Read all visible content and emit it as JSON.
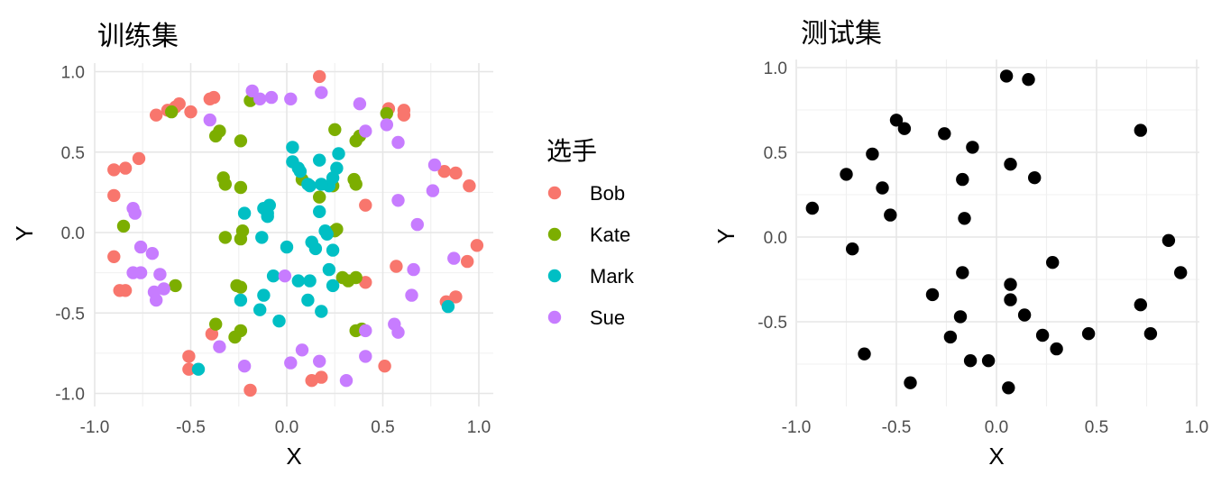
{
  "chart_data": [
    {
      "type": "scatter",
      "title": "训练集",
      "xlabel": "X",
      "ylabel": "Y",
      "xlim": [
        -1.0,
        1.0
      ],
      "ylim": [
        -1.0,
        1.0
      ],
      "x_ticks": [
        "-1.0",
        "-0.5",
        "0.0",
        "0.5",
        "1.0"
      ],
      "y_ticks": [
        "-1.0",
        "-0.5",
        "0.0",
        "0.5",
        "1.0"
      ],
      "grid": true,
      "legend": {
        "title": "选手",
        "placement": "right",
        "entries": [
          "Bob",
          "Kate",
          "Mark",
          "Sue"
        ]
      },
      "series": [
        {
          "name": "Bob",
          "color": "#F8766D",
          "points": [
            [
              0.17,
              0.97
            ],
            [
              -0.4,
              0.83
            ],
            [
              -0.38,
              0.84
            ],
            [
              -0.56,
              0.8
            ],
            [
              -0.58,
              0.78
            ],
            [
              -0.62,
              0.76
            ],
            [
              -0.5,
              0.75
            ],
            [
              -0.68,
              0.73
            ],
            [
              0.53,
              0.77
            ],
            [
              0.61,
              0.76
            ],
            [
              0.61,
              0.73
            ],
            [
              -0.77,
              0.46
            ],
            [
              -0.9,
              0.39
            ],
            [
              -0.84,
              0.4
            ],
            [
              0.82,
              0.38
            ],
            [
              0.88,
              0.37
            ],
            [
              0.95,
              0.29
            ],
            [
              -0.9,
              0.23
            ],
            [
              0.41,
              0.17
            ],
            [
              -0.9,
              -0.15
            ],
            [
              0.99,
              -0.08
            ],
            [
              0.94,
              -0.18
            ],
            [
              0.57,
              -0.21
            ],
            [
              -0.87,
              -0.36
            ],
            [
              -0.84,
              -0.36
            ],
            [
              0.41,
              -0.31
            ],
            [
              0.83,
              -0.43
            ],
            [
              0.88,
              -0.4
            ],
            [
              -0.39,
              -0.63
            ],
            [
              -0.51,
              -0.77
            ],
            [
              -0.51,
              -0.85
            ],
            [
              0.51,
              -0.83
            ],
            [
              0.13,
              -0.92
            ],
            [
              0.18,
              -0.9
            ],
            [
              -0.19,
              -0.98
            ]
          ]
        },
        {
          "name": "Kate",
          "color": "#7CAE00",
          "points": [
            [
              -0.19,
              0.82
            ],
            [
              -0.6,
              0.75
            ],
            [
              0.52,
              0.74
            ],
            [
              0.25,
              0.64
            ],
            [
              -0.35,
              0.63
            ],
            [
              -0.37,
              0.6
            ],
            [
              0.38,
              0.6
            ],
            [
              0.36,
              0.57
            ],
            [
              -0.24,
              0.57
            ],
            [
              -0.33,
              0.34
            ],
            [
              -0.32,
              0.3
            ],
            [
              0.08,
              0.33
            ],
            [
              0.35,
              0.33
            ],
            [
              0.36,
              0.3
            ],
            [
              0.24,
              0.29
            ],
            [
              -0.24,
              0.28
            ],
            [
              0.17,
              0.22
            ],
            [
              -0.85,
              0.04
            ],
            [
              -0.23,
              0.01
            ],
            [
              0.26,
              0.02
            ],
            [
              0.25,
              0.01
            ],
            [
              -0.32,
              -0.03
            ],
            [
              -0.24,
              -0.04
            ],
            [
              -0.58,
              -0.33
            ],
            [
              -0.26,
              -0.33
            ],
            [
              -0.24,
              -0.34
            ],
            [
              0.29,
              -0.28
            ],
            [
              0.32,
              -0.3
            ],
            [
              0.36,
              -0.28
            ],
            [
              -0.37,
              -0.57
            ],
            [
              -0.24,
              -0.61
            ],
            [
              -0.27,
              -0.65
            ],
            [
              0.36,
              -0.61
            ],
            [
              0.39,
              -0.6
            ]
          ]
        },
        {
          "name": "Mark",
          "color": "#00BFC4",
          "points": [
            [
              0.03,
              0.53
            ],
            [
              0.27,
              0.49
            ],
            [
              0.17,
              0.45
            ],
            [
              0.03,
              0.44
            ],
            [
              0.06,
              0.4
            ],
            [
              0.26,
              0.4
            ],
            [
              0.07,
              0.38
            ],
            [
              0.11,
              0.3
            ],
            [
              0.12,
              0.29
            ],
            [
              0.24,
              0.34
            ],
            [
              0.22,
              0.29
            ],
            [
              0.18,
              0.3
            ],
            [
              -0.09,
              0.17
            ],
            [
              -0.12,
              0.15
            ],
            [
              -0.1,
              0.12
            ],
            [
              0.17,
              0.13
            ],
            [
              -0.22,
              0.12
            ],
            [
              -0.1,
              0.1
            ],
            [
              0.2,
              0.01
            ],
            [
              0.21,
              -0.01
            ],
            [
              -0.13,
              -0.03
            ],
            [
              0.13,
              -0.06
            ],
            [
              0.15,
              -0.1
            ],
            [
              0.24,
              -0.11
            ],
            [
              0.0,
              -0.09
            ],
            [
              -0.07,
              -0.27
            ],
            [
              0.06,
              -0.3
            ],
            [
              0.12,
              -0.3
            ],
            [
              0.22,
              -0.23
            ],
            [
              0.24,
              -0.33
            ],
            [
              -0.12,
              -0.39
            ],
            [
              0.11,
              -0.42
            ],
            [
              -0.24,
              -0.42
            ],
            [
              0.18,
              -0.49
            ],
            [
              -0.14,
              -0.48
            ],
            [
              -0.04,
              -0.55
            ],
            [
              0.84,
              -0.46
            ],
            [
              -0.46,
              -0.85
            ]
          ]
        },
        {
          "name": "Sue",
          "color": "#C77CFF",
          "points": [
            [
              -0.18,
              0.88
            ],
            [
              -0.08,
              0.84
            ],
            [
              -0.14,
              0.83
            ],
            [
              0.02,
              0.83
            ],
            [
              0.18,
              0.87
            ],
            [
              0.38,
              0.8
            ],
            [
              -0.4,
              0.7
            ],
            [
              0.41,
              0.63
            ],
            [
              0.52,
              0.67
            ],
            [
              0.58,
              0.56
            ],
            [
              0.77,
              0.42
            ],
            [
              0.76,
              0.26
            ],
            [
              0.58,
              0.2
            ],
            [
              -0.8,
              0.15
            ],
            [
              -0.79,
              0.12
            ],
            [
              0.68,
              0.05
            ],
            [
              -0.76,
              -0.09
            ],
            [
              -0.7,
              -0.13
            ],
            [
              -0.8,
              -0.25
            ],
            [
              -0.76,
              -0.25
            ],
            [
              -0.66,
              -0.26
            ],
            [
              -0.64,
              -0.35
            ],
            [
              -0.69,
              -0.37
            ],
            [
              -0.68,
              -0.42
            ],
            [
              0.87,
              -0.16
            ],
            [
              0.66,
              -0.23
            ],
            [
              0.65,
              -0.39
            ],
            [
              -0.01,
              -0.27
            ],
            [
              0.56,
              -0.57
            ],
            [
              0.58,
              -0.62
            ],
            [
              0.41,
              -0.61
            ],
            [
              -0.35,
              -0.71
            ],
            [
              0.08,
              -0.73
            ],
            [
              0.41,
              -0.77
            ],
            [
              0.02,
              -0.81
            ],
            [
              0.17,
              -0.8
            ],
            [
              -0.22,
              -0.83
            ],
            [
              0.31,
              -0.92
            ]
          ]
        }
      ]
    },
    {
      "type": "scatter",
      "title": "测试集",
      "xlabel": "X",
      "ylabel": "Y",
      "xlim": [
        -1.0,
        1.0
      ],
      "ylim": [
        -0.9,
        1.0
      ],
      "x_ticks": [
        "-1.0",
        "-0.5",
        "0.0",
        "0.5",
        "1.0"
      ],
      "y_ticks": [
        "-0.5",
        "0.0",
        "0.5",
        "1.0"
      ],
      "grid": true,
      "series": [
        {
          "color": "#000000",
          "points": [
            [
              0.05,
              0.95
            ],
            [
              0.16,
              0.93
            ],
            [
              -0.5,
              0.69
            ],
            [
              -0.46,
              0.64
            ],
            [
              -0.26,
              0.61
            ],
            [
              -0.12,
              0.53
            ],
            [
              0.72,
              0.63
            ],
            [
              -0.62,
              0.49
            ],
            [
              0.07,
              0.43
            ],
            [
              -0.75,
              0.37
            ],
            [
              -0.17,
              0.34
            ],
            [
              0.19,
              0.35
            ],
            [
              -0.57,
              0.29
            ],
            [
              -0.92,
              0.17
            ],
            [
              -0.53,
              0.13
            ],
            [
              -0.16,
              0.11
            ],
            [
              -0.72,
              -0.07
            ],
            [
              0.86,
              -0.02
            ],
            [
              0.28,
              -0.15
            ],
            [
              0.92,
              -0.21
            ],
            [
              -0.17,
              -0.21
            ],
            [
              0.07,
              -0.28
            ],
            [
              -0.32,
              -0.34
            ],
            [
              0.07,
              -0.37
            ],
            [
              0.72,
              -0.4
            ],
            [
              -0.18,
              -0.47
            ],
            [
              0.14,
              -0.46
            ],
            [
              -0.23,
              -0.59
            ],
            [
              0.23,
              -0.58
            ],
            [
              0.46,
              -0.57
            ],
            [
              0.77,
              -0.57
            ],
            [
              0.3,
              -0.66
            ],
            [
              -0.66,
              -0.69
            ],
            [
              -0.13,
              -0.73
            ],
            [
              -0.04,
              -0.73
            ],
            [
              -0.43,
              -0.86
            ],
            [
              0.06,
              -0.89
            ]
          ]
        }
      ]
    }
  ]
}
